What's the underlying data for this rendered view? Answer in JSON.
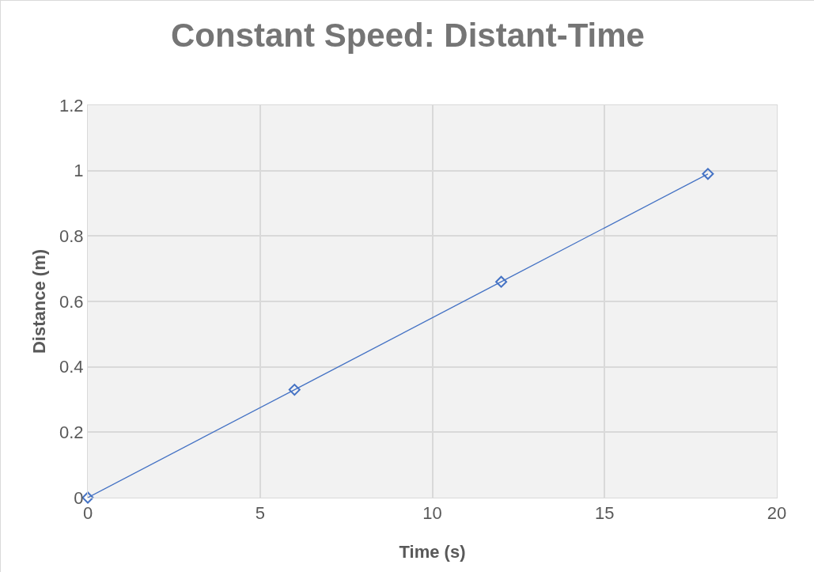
{
  "chart_data": {
    "type": "line",
    "title": "Constant Speed: Distant-Time",
    "xlabel": "Time (s)",
    "ylabel": "Distance (m)",
    "x": [
      0,
      6,
      12,
      18
    ],
    "series": [
      {
        "color": "#4472c4",
        "values": [
          0,
          0.33,
          0.66,
          0.99
        ]
      }
    ],
    "marker": "diamond",
    "line_style": "solid",
    "xlim": [
      0,
      20
    ],
    "xticks": [
      0,
      5,
      10,
      15,
      20
    ],
    "ylim": [
      0,
      1.2
    ],
    "yticks": [
      0,
      0.2,
      0.4,
      0.6,
      0.8,
      1,
      1.2
    ],
    "grid": true
  }
}
